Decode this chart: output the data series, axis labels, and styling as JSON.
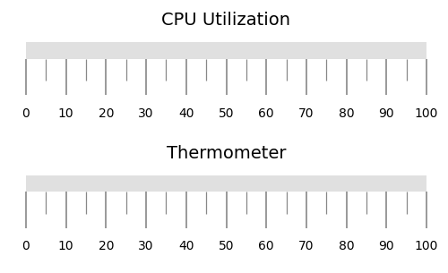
{
  "gauges": [
    {
      "title": "CPU Utilization"
    },
    {
      "title": "Thermometer"
    }
  ],
  "vmin": 0,
  "vmax": 100,
  "major_tick_step": 10,
  "minor_tick_step": 5,
  "bar_color": "#e0e0e0",
  "tick_color": "#888888",
  "title_fontsize": 14,
  "label_fontsize": 10,
  "background_color": "#ffffff",
  "fig_width": 5.0,
  "fig_height": 3.05,
  "dpi": 100
}
